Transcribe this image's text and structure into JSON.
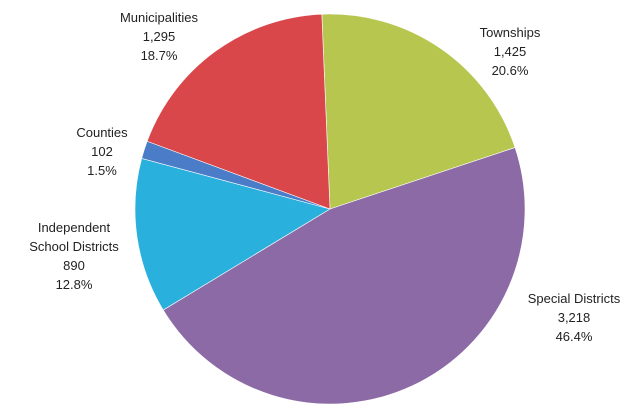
{
  "chart_data": {
    "type": "pie",
    "slices": [
      {
        "label": "Townships",
        "label_lines": [
          "Townships"
        ],
        "value_text": "1,425",
        "percent_text": "20.6%",
        "value": 1425,
        "percent": 20.6,
        "color": "#b7c64f"
      },
      {
        "label": "Special Districts",
        "label_lines": [
          "Special Districts"
        ],
        "value_text": "3,218",
        "percent_text": "46.4%",
        "value": 3218,
        "percent": 46.4,
        "color": "#8c6aa6"
      },
      {
        "label": "Independent School Districts",
        "label_lines": [
          "Independent",
          "School Districts"
        ],
        "value_text": "890",
        "percent_text": "12.8%",
        "value": 890,
        "percent": 12.8,
        "color": "#2ab0dd"
      },
      {
        "label": "Counties",
        "label_lines": [
          "Counties"
        ],
        "value_text": "102",
        "percent_text": "1.5%",
        "value": 102,
        "percent": 1.5,
        "color": "#4a7cc8"
      },
      {
        "label": "Municipalities",
        "label_lines": [
          "Municipalities"
        ],
        "value_text": "1,295",
        "percent_text": "18.7%",
        "value": 1295,
        "percent": 18.7,
        "color": "#d9474a"
      }
    ]
  }
}
